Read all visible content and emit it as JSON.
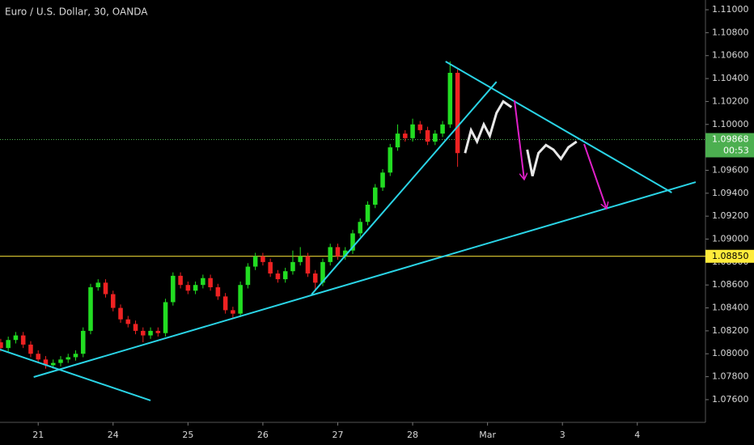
{
  "chart_data": {
    "type": "candlestick",
    "title": "Euro / U.S. Dollar, 30, OANDA",
    "up_color": "#22dd22",
    "down_color": "#ee2222",
    "x": [
      -0.5,
      -0.4,
      -0.3,
      -0.2,
      -0.1,
      0.0,
      0.1,
      0.2,
      0.3,
      0.4,
      0.5,
      0.6,
      0.7,
      0.8,
      0.9,
      1.0,
      1.1,
      1.2,
      1.3,
      1.4,
      1.5,
      1.6,
      1.7,
      1.8,
      1.9,
      2.0,
      2.1,
      2.2,
      2.3,
      2.4,
      2.5,
      2.6,
      2.7,
      2.8,
      2.9,
      3.0,
      3.1,
      3.2,
      3.3,
      3.4,
      3.5,
      3.6,
      3.7,
      3.8,
      3.9,
      4.0,
      4.1,
      4.2,
      4.3,
      4.4,
      4.5,
      4.6,
      4.7,
      4.8,
      4.9,
      5.0,
      5.1,
      5.2,
      5.3,
      5.4,
      5.5,
      5.6
    ],
    "open": [
      1.081,
      1.0805,
      1.0812,
      1.0816,
      1.0808,
      1.08,
      1.0795,
      1.079,
      1.0792,
      1.0795,
      1.0797,
      1.08,
      1.082,
      1.0858,
      1.0862,
      1.0852,
      1.084,
      1.083,
      1.0826,
      1.082,
      1.0816,
      1.082,
      1.0818,
      1.0845,
      1.0868,
      1.086,
      1.0855,
      1.086,
      1.0866,
      1.0858,
      1.085,
      1.0838,
      1.0835,
      1.086,
      1.0876,
      1.0885,
      1.088,
      1.087,
      1.0865,
      1.0872,
      1.088,
      1.0885,
      1.087,
      1.0862,
      1.088,
      1.0893,
      1.0885,
      1.089,
      1.0905,
      1.0915,
      1.093,
      1.0945,
      1.0958,
      1.098,
      1.0992,
      1.0988,
      1.1,
      1.0995,
      1.0985,
      1.0992,
      1.1,
      1.1045
    ],
    "high": [
      1.0813,
      1.0815,
      1.0819,
      1.0819,
      1.0811,
      1.0803,
      1.0798,
      1.0795,
      1.0798,
      1.08,
      1.0803,
      1.0823,
      1.0861,
      1.0865,
      1.0865,
      1.0855,
      1.0843,
      1.0833,
      1.0829,
      1.0823,
      1.0823,
      1.0823,
      1.0848,
      1.0871,
      1.0871,
      1.0863,
      1.0863,
      1.0869,
      1.0869,
      1.0861,
      1.0853,
      1.0841,
      1.0863,
      1.0879,
      1.0888,
      1.0888,
      1.0883,
      1.0873,
      1.0875,
      1.089,
      1.0893,
      1.0888,
      1.0873,
      1.0883,
      1.0896,
      1.0896,
      1.0893,
      1.0908,
      1.0918,
      1.0933,
      1.0948,
      1.0961,
      1.0983,
      1.1,
      1.0995,
      1.1005,
      1.1003,
      1.0998,
      1.0995,
      1.1003,
      1.1055,
      1.1048
    ],
    "low": [
      1.0802,
      1.0802,
      1.0809,
      1.0805,
      1.0797,
      1.0792,
      1.0787,
      1.0787,
      1.0789,
      1.0792,
      1.0794,
      1.0797,
      1.0817,
      1.0855,
      1.0849,
      1.0837,
      1.0827,
      1.0823,
      1.0817,
      1.081,
      1.0813,
      1.0815,
      1.0815,
      1.0842,
      1.0857,
      1.0852,
      1.0852,
      1.0857,
      1.0855,
      1.0847,
      1.0835,
      1.0831,
      1.0832,
      1.0857,
      1.0873,
      1.0877,
      1.0867,
      1.0862,
      1.0862,
      1.0869,
      1.0877,
      1.0867,
      1.0855,
      1.0859,
      1.0877,
      1.0882,
      1.0882,
      1.0887,
      1.0902,
      1.0912,
      1.0927,
      1.0942,
      1.0955,
      1.0977,
      1.0985,
      1.0985,
      1.0992,
      1.0982,
      1.0982,
      1.0989,
      1.0997,
      1.0963
    ],
    "close": [
      1.0805,
      1.0812,
      1.0816,
      1.0808,
      1.08,
      1.0795,
      1.079,
      1.0792,
      1.0795,
      1.0797,
      1.08,
      1.082,
      1.0858,
      1.0862,
      1.0852,
      1.084,
      1.083,
      1.0826,
      1.082,
      1.0816,
      1.082,
      1.0818,
      1.0845,
      1.0868,
      1.086,
      1.0855,
      1.086,
      1.0866,
      1.0858,
      1.085,
      1.0838,
      1.0835,
      1.086,
      1.0876,
      1.0885,
      1.088,
      1.087,
      1.0865,
      1.0872,
      1.088,
      1.0885,
      1.087,
      1.0862,
      1.088,
      1.0893,
      1.0885,
      1.089,
      1.0905,
      1.0915,
      1.093,
      1.0945,
      1.0958,
      1.098,
      1.0992,
      1.0988,
      1.1,
      1.0995,
      1.0985,
      1.0992,
      1.1,
      1.1045,
      1.0975
    ],
    "projection": {
      "color": "#e8e8e8",
      "x": [
        5.7,
        5.78,
        5.86,
        5.95,
        6.03,
        6.12,
        6.21,
        6.32,
        null,
        6.53,
        6.6,
        6.68,
        6.78,
        6.88,
        6.98,
        7.08,
        7.19
      ],
      "values": [
        1.0975,
        1.0995,
        1.0985,
        1.1,
        1.099,
        1.101,
        1.102,
        1.1015,
        null,
        1.0978,
        1.0955,
        1.0975,
        1.0982,
        1.0978,
        1.097,
        1.098,
        1.0985
      ]
    },
    "trendlines": [
      {
        "color": "#2ad4e6",
        "x": [
          -0.51,
          1.5
        ],
        "values": [
          1.08037,
          1.07593
        ]
      },
      {
        "color": "#2ad4e6",
        "x": [
          -0.06,
          8.78
        ],
        "values": [
          1.07797,
          1.09497
        ]
      },
      {
        "color": "#2ad4e6",
        "x": [
          3.65,
          6.12
        ],
        "values": [
          1.08517,
          1.10372
        ]
      },
      {
        "color": "#2ad4e6",
        "x": [
          5.44,
          8.46
        ],
        "values": [
          1.10549,
          1.09406
        ]
      }
    ],
    "arrows": [
      {
        "color": "#e020c8",
        "x": [
          6.36,
          6.49
        ],
        "values": [
          1.1021,
          1.09519
        ]
      },
      {
        "color": "#e020c8",
        "x": [
          7.29,
          7.59
        ],
        "values": [
          1.09829,
          1.09265
        ]
      }
    ],
    "price_lines": [
      {
        "value": 1.09868,
        "color": "#4caf50",
        "style": "dotted",
        "countdown": "00:53"
      },
      {
        "value": 1.0885,
        "label": "1.08850",
        "color": "#ffeb3b",
        "style": "solid"
      }
    ],
    "xlim": [
      -0.51,
      8.91
    ],
    "xticks": [
      {
        "value": 0,
        "label": "21"
      },
      {
        "value": 1,
        "label": "24"
      },
      {
        "value": 2,
        "label": "25"
      },
      {
        "value": 3,
        "label": "26"
      },
      {
        "value": 4,
        "label": "27"
      },
      {
        "value": 5,
        "label": "28"
      },
      {
        "value": 6,
        "label": "Mar"
      },
      {
        "value": 7,
        "label": "3"
      },
      {
        "value": 8,
        "label": "4"
      }
    ],
    "ylim": [
      1.07402,
      1.11085
    ],
    "yticks": [
      {
        "value": 1.11,
        "label": "1.11000"
      },
      {
        "value": 1.108,
        "label": "1.10800"
      },
      {
        "value": 1.106,
        "label": "1.10600"
      },
      {
        "value": 1.104,
        "label": "1.10400"
      },
      {
        "value": 1.102,
        "label": "1.10200"
      },
      {
        "value": 1.1,
        "label": "1.10000"
      },
      {
        "value": 1.098,
        "label": "1.09800"
      },
      {
        "value": 1.096,
        "label": "1.09600"
      },
      {
        "value": 1.094,
        "label": "1.09400"
      },
      {
        "value": 1.092,
        "label": "1.09200"
      },
      {
        "value": 1.09,
        "label": "1.09000"
      },
      {
        "value": 1.088,
        "label": "1.08800"
      },
      {
        "value": 1.086,
        "label": "1.08600"
      },
      {
        "value": 1.084,
        "label": "1.08400"
      },
      {
        "value": 1.082,
        "label": "1.08200"
      },
      {
        "value": 1.08,
        "label": "1.08000"
      },
      {
        "value": 1.078,
        "label": "1.07800"
      },
      {
        "value": 1.076,
        "label": "1.07600"
      }
    ]
  }
}
